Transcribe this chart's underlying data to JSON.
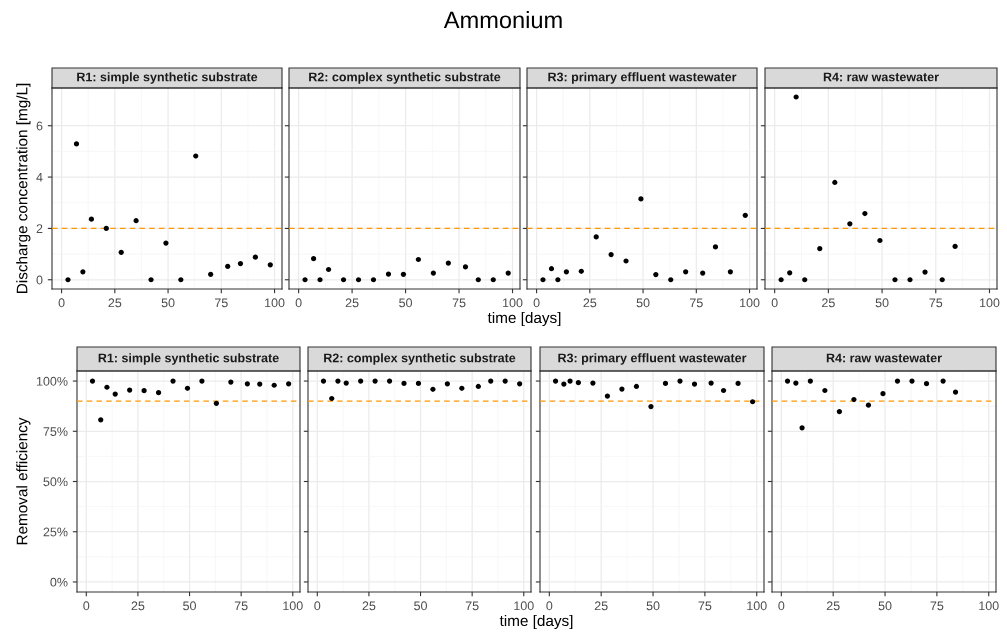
{
  "chart_data": [
    {
      "type": "scatter",
      "title": "R1: simple synthetic substrate",
      "ylabel": "Discharge concentration [mg/L]",
      "x": [
        3,
        7,
        10,
        14,
        21,
        28,
        35,
        42,
        49,
        56,
        63,
        70,
        78,
        84,
        91,
        98
      ],
      "series": [
        {
          "color": "#000000",
          "values": [
            0,
            5.29,
            0.31,
            2.36,
            2.0,
            1.07,
            2.3,
            0,
            1.43,
            0,
            4.82,
            0.21,
            0.52,
            0.63,
            0.88,
            0.58
          ]
        }
      ],
      "xlim": [
        -4.5,
        103.5
      ],
      "xticks": [
        0,
        25,
        50,
        75,
        100
      ],
      "ylim": [
        -0.36,
        7.47
      ],
      "yticks": [
        0,
        2,
        4,
        6
      ],
      "ref_lines": [
        {
          "axis": "y",
          "value": 2,
          "color": "#ff9900",
          "line_style": "dashed"
        }
      ],
      "grid": true,
      "marker": "circle"
    },
    {
      "type": "scatter",
      "title": "R2: complex synthetic substrate",
      "subtitle": "Ammonium",
      "xlabel": "time [days]",
      "x": [
        3,
        7,
        10,
        14,
        21,
        28,
        35,
        42,
        49,
        56,
        63,
        70,
        78,
        84,
        91,
        98
      ],
      "series": [
        {
          "color": "#000000",
          "values": [
            0,
            0.82,
            0,
            0.4,
            0,
            0,
            0,
            0.22,
            0.21,
            0.79,
            0.26,
            0.65,
            0.5,
            0,
            0,
            0.26
          ]
        }
      ],
      "xlim": [
        -4.5,
        103.5
      ],
      "xticks": [
        0,
        25,
        50,
        75,
        100
      ],
      "ylim": [
        -0.36,
        7.47
      ],
      "yticks": [
        0,
        2,
        4,
        6
      ],
      "tick_labels": "x",
      "ref_lines": [
        {
          "axis": "y",
          "value": 2,
          "color": "#ff9900",
          "line_style": "dashed"
        }
      ],
      "grid": true,
      "marker": "circle"
    },
    {
      "type": "scatter",
      "title": "R3: primary effluent wastewater",
      "x": [
        3,
        7,
        10,
        14,
        21,
        28,
        35,
        42,
        49,
        56,
        63,
        70,
        78,
        84,
        91,
        98
      ],
      "series": [
        {
          "color": "#000000",
          "values": [
            0,
            0.43,
            0,
            0.31,
            0.33,
            1.67,
            0.98,
            0.73,
            3.15,
            0.2,
            0,
            0.31,
            0.26,
            1.28,
            0.31,
            2.51
          ]
        }
      ],
      "xlim": [
        -4.5,
        103.5
      ],
      "xticks": [
        0,
        25,
        50,
        75,
        100
      ],
      "ylim": [
        -0.36,
        7.47
      ],
      "yticks": [
        0,
        2,
        4,
        6
      ],
      "tick_labels": "x",
      "ref_lines": [
        {
          "axis": "y",
          "value": 2,
          "color": "#ff9900",
          "line_style": "dashed"
        }
      ],
      "grid": true,
      "marker": "circle"
    },
    {
      "type": "scatter",
      "title": "R4: raw wastewater",
      "x": [
        3,
        7,
        10,
        14,
        21,
        28,
        35,
        42,
        49,
        56,
        63,
        70,
        78,
        84
      ],
      "series": [
        {
          "color": "#000000",
          "values": [
            0,
            0.27,
            7.12,
            0,
            1.21,
            3.79,
            2.18,
            2.58,
            1.53,
            0,
            0,
            0.3,
            0,
            1.3
          ]
        }
      ],
      "xlim": [
        -4.5,
        103.5
      ],
      "xticks": [
        0,
        25,
        50,
        75,
        100
      ],
      "ylim": [
        -0.36,
        7.47
      ],
      "yticks": [
        0,
        2,
        4,
        6
      ],
      "tick_labels": "x",
      "ref_lines": [
        {
          "axis": "y",
          "value": 2,
          "color": "#ff9900",
          "line_style": "dashed"
        }
      ],
      "grid": true,
      "marker": "circle"
    },
    {
      "type": "scatter",
      "title": "R1: simple synthetic substrate",
      "ylabel": "Removal efficiency",
      "x": [
        3,
        7,
        10,
        14,
        21,
        28,
        35,
        42,
        49,
        56,
        63,
        70,
        78,
        84,
        91,
        98
      ],
      "series": [
        {
          "color": "#000000",
          "values": [
            100,
            80.7,
            96.9,
            93.5,
            95.5,
            95.2,
            94.2,
            100,
            96.4,
            100,
            88.9,
            99.5,
            98.6,
            98.5,
            97.9,
            98.6
          ]
        }
      ],
      "xlim": [
        -4.5,
        103.5
      ],
      "xticks": [
        0,
        25,
        50,
        75,
        100
      ],
      "ylim": [
        -5,
        105
      ],
      "yticks": [
        {
          "value": 0,
          "label": "0%"
        },
        {
          "value": 25,
          "label": "25%"
        },
        {
          "value": 50,
          "label": "50%"
        },
        {
          "value": 75,
          "label": "75%"
        },
        {
          "value": 100,
          "label": "100%"
        }
      ],
      "ref_lines": [
        {
          "axis": "y",
          "value": 90,
          "color": "#ff9900",
          "line_style": "dashed"
        }
      ],
      "grid": true,
      "marker": "circle"
    },
    {
      "type": "scatter",
      "title": "R2: complex synthetic substrate",
      "xlabel": "time [days]",
      "x": [
        3,
        7,
        10,
        14,
        21,
        28,
        35,
        42,
        49,
        56,
        63,
        70,
        78,
        84,
        91,
        98
      ],
      "series": [
        {
          "color": "#000000",
          "values": [
            100,
            91.3,
            100,
            99,
            100,
            100,
            100,
            98.8,
            98.8,
            95.9,
            98.6,
            96.4,
            97.3,
            100,
            100,
            98.6
          ]
        }
      ],
      "xlim": [
        -4.5,
        103.5
      ],
      "xticks": [
        0,
        25,
        50,
        75,
        100
      ],
      "ylim": [
        -5,
        105
      ],
      "yticks": [
        0,
        25,
        50,
        75,
        100
      ],
      "tick_labels": "x",
      "ref_lines": [
        {
          "axis": "y",
          "value": 90,
          "color": "#ff9900",
          "line_style": "dashed"
        }
      ],
      "grid": true,
      "marker": "circle"
    },
    {
      "type": "scatter",
      "title": "R3: primary effluent wastewater",
      "x": [
        3,
        7,
        10,
        14,
        21,
        28,
        35,
        42,
        49,
        56,
        63,
        70,
        78,
        84,
        91,
        98
      ],
      "series": [
        {
          "color": "#000000",
          "values": [
            100,
            98.5,
            100,
            99.2,
            99,
            92.5,
            96,
            97.3,
            87.3,
            98.8,
            100,
            98.5,
            99,
            95.3,
            98.8,
            89.7
          ]
        }
      ],
      "xlim": [
        -4.5,
        103.5
      ],
      "xticks": [
        0,
        25,
        50,
        75,
        100
      ],
      "ylim": [
        -5,
        105
      ],
      "yticks": [
        0,
        25,
        50,
        75,
        100
      ],
      "tick_labels": "x",
      "ref_lines": [
        {
          "axis": "y",
          "value": 90,
          "color": "#ff9900",
          "line_style": "dashed"
        }
      ],
      "grid": true,
      "marker": "circle"
    },
    {
      "type": "scatter",
      "title": "R4: raw wastewater",
      "x": [
        3,
        7,
        10,
        14,
        21,
        28,
        35,
        42,
        49,
        56,
        63,
        70,
        78,
        84
      ],
      "series": [
        {
          "color": "#000000",
          "values": [
            100,
            99,
            76.7,
            100,
            95.3,
            84.8,
            90.8,
            88,
            93.7,
            100,
            100,
            98.7,
            100,
            94.5
          ]
        }
      ],
      "xlim": [
        -4.5,
        103.5
      ],
      "xticks": [
        0,
        25,
        50,
        75,
        100
      ],
      "ylim": [
        -5,
        105
      ],
      "yticks": [
        0,
        25,
        50,
        75,
        100
      ],
      "tick_labels": "x",
      "ref_lines": [
        {
          "axis": "y",
          "value": 90,
          "color": "#ff9900",
          "line_style": "dashed"
        }
      ],
      "grid": true,
      "marker": "circle"
    }
  ]
}
